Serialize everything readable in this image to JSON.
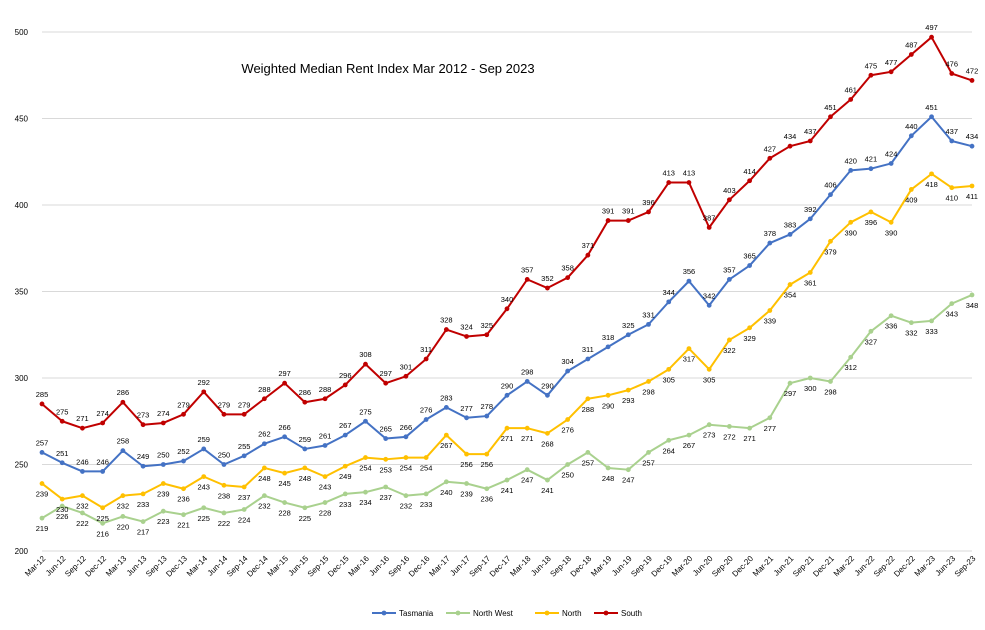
{
  "chart_data": {
    "type": "line",
    "title": "Weighted Median Rent Index Mar 2012 - Sep 2023",
    "xlabel": "",
    "ylabel": "",
    "ylim": [
      200,
      500
    ],
    "yticks": [
      200,
      250,
      300,
      350,
      400,
      450,
      500
    ],
    "grid": true,
    "legend_position": "bottom",
    "categories": [
      "Mar-12",
      "Jun-12",
      "Sep-12",
      "Dec-12",
      "Mar-13",
      "Jun-13",
      "Sep-13",
      "Dec-13",
      "Mar-14",
      "Jun-14",
      "Sep-14",
      "Dec-14",
      "Mar-15",
      "Jun-15",
      "Sep-15",
      "Dec-15",
      "Mar-16",
      "Jun-16",
      "Sep-16",
      "Dec-16",
      "Mar-17",
      "Jun-17",
      "Sep-17",
      "Dec-17",
      "Mar-18",
      "Jun-18",
      "Sep-18",
      "Dec-18",
      "Mar-19",
      "Jun-19",
      "Sep-19",
      "Dec-19",
      "Mar-20",
      "Jun-20",
      "Sep-20",
      "Dec-20",
      "Mar-21",
      "Jun-21",
      "Sep-21",
      "Dec-21",
      "Mar-22",
      "Jun-22",
      "Sep-22",
      "Dec-22",
      "Mar-23",
      "Jun-23",
      "Sep-23"
    ],
    "series": [
      {
        "name": "Tasmania",
        "color": "#4472c4",
        "label_position": "above",
        "values": [
          257,
          251,
          246,
          246,
          258,
          249,
          250,
          252,
          259,
          250,
          255,
          262,
          266,
          259,
          261,
          267,
          275,
          265,
          266,
          276,
          283,
          277,
          278,
          290,
          298,
          290,
          304,
          311,
          318,
          325,
          331,
          344,
          356,
          342,
          357,
          365,
          378,
          383,
          392,
          406,
          420,
          421,
          424,
          440,
          451,
          437,
          434
        ]
      },
      {
        "name": "North West",
        "color": "#a9d18e",
        "label_position": "below",
        "values": [
          219,
          226,
          222,
          216,
          220,
          217,
          223,
          221,
          225,
          222,
          224,
          232,
          228,
          225,
          228,
          233,
          234,
          237,
          232,
          233,
          240,
          239,
          236,
          241,
          247,
          241,
          250,
          257,
          248,
          247,
          257,
          264,
          267,
          273,
          272,
          271,
          277,
          297,
          300,
          298,
          312,
          327,
          336,
          332,
          333,
          343,
          348
        ]
      },
      {
        "name": "North",
        "color": "#ffc000",
        "label_position": "below",
        "values": [
          239,
          230,
          232,
          225,
          232,
          233,
          239,
          236,
          243,
          238,
          237,
          248,
          245,
          248,
          243,
          249,
          254,
          253,
          254,
          254,
          267,
          256,
          256,
          271,
          271,
          268,
          276,
          288,
          290,
          293,
          298,
          305,
          317,
          305,
          322,
          329,
          339,
          354,
          361,
          379,
          390,
          396,
          390,
          409,
          418,
          410,
          411
        ]
      },
      {
        "name": "South",
        "color": "#c00000",
        "label_position": "above",
        "values": [
          285,
          275,
          271,
          274,
          286,
          273,
          274,
          279,
          292,
          279,
          279,
          288,
          297,
          286,
          288,
          296,
          308,
          297,
          301,
          311,
          328,
          324,
          325,
          340,
          357,
          352,
          358,
          371,
          391,
          391,
          396,
          413,
          413,
          387,
          403,
          414,
          427,
          434,
          437,
          451,
          461,
          475,
          477,
          487,
          497,
          476,
          472
        ]
      }
    ]
  }
}
